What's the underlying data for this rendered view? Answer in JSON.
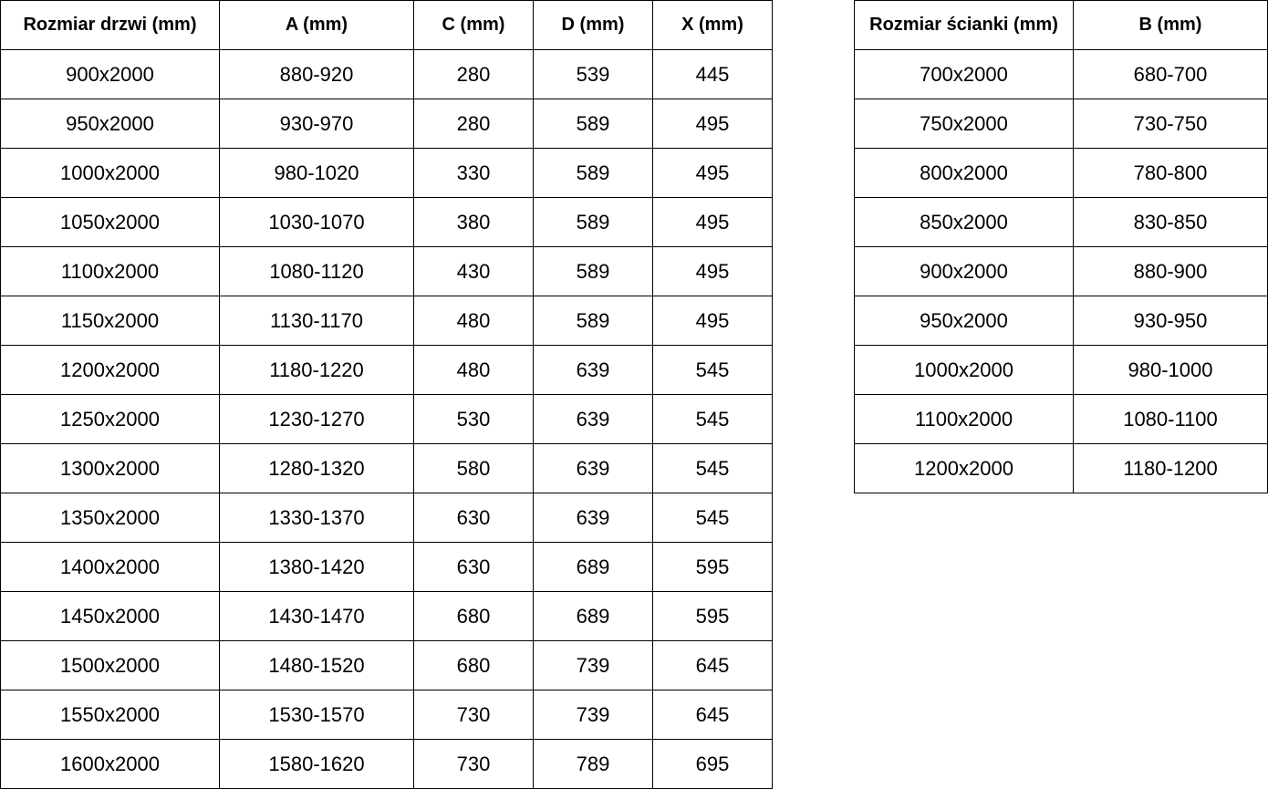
{
  "doors_table": {
    "headers": [
      "Rozmiar drzwi (mm)",
      "A (mm)",
      "C (mm)",
      "D (mm)",
      "X (mm)"
    ],
    "rows": [
      [
        "900x2000",
        "880-920",
        "280",
        "539",
        "445"
      ],
      [
        "950x2000",
        "930-970",
        "280",
        "589",
        "495"
      ],
      [
        "1000x2000",
        "980-1020",
        "330",
        "589",
        "495"
      ],
      [
        "1050x2000",
        "1030-1070",
        "380",
        "589",
        "495"
      ],
      [
        "1100x2000",
        "1080-1120",
        "430",
        "589",
        "495"
      ],
      [
        "1150x2000",
        "1130-1170",
        "480",
        "589",
        "495"
      ],
      [
        "1200x2000",
        "1180-1220",
        "480",
        "639",
        "545"
      ],
      [
        "1250x2000",
        "1230-1270",
        "530",
        "639",
        "545"
      ],
      [
        "1300x2000",
        "1280-1320",
        "580",
        "639",
        "545"
      ],
      [
        "1350x2000",
        "1330-1370",
        "630",
        "639",
        "545"
      ],
      [
        "1400x2000",
        "1380-1420",
        "630",
        "689",
        "595"
      ],
      [
        "1450x2000",
        "1430-1470",
        "680",
        "689",
        "595"
      ],
      [
        "1500x2000",
        "1480-1520",
        "680",
        "739",
        "645"
      ],
      [
        "1550x2000",
        "1530-1570",
        "730",
        "739",
        "645"
      ],
      [
        "1600x2000",
        "1580-1620",
        "730",
        "789",
        "695"
      ]
    ]
  },
  "panels_table": {
    "headers": [
      "Rozmiar ścianki (mm)",
      "B (mm)"
    ],
    "rows": [
      [
        "700x2000",
        "680-700"
      ],
      [
        "750x2000",
        "730-750"
      ],
      [
        "800x2000",
        "780-800"
      ],
      [
        "850x2000",
        "830-850"
      ],
      [
        "900x2000",
        "880-900"
      ],
      [
        "950x2000",
        "930-950"
      ],
      [
        "1000x2000",
        "980-1000"
      ],
      [
        "1100x2000",
        "1080-1100"
      ],
      [
        "1200x2000",
        "1180-1200"
      ]
    ]
  }
}
